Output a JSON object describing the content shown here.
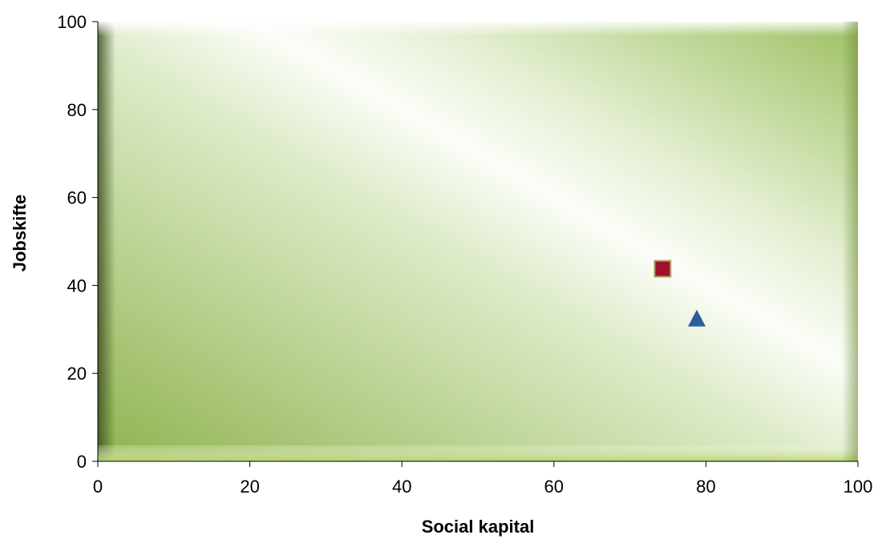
{
  "chart_data": {
    "type": "scatter",
    "title": "",
    "xlabel": "Social kapital",
    "ylabel": "Jobskifte",
    "xlim": [
      0,
      100
    ],
    "ylim": [
      0,
      100
    ],
    "x_ticks": [
      "0",
      "20",
      "40",
      "60",
      "80",
      "100"
    ],
    "y_ticks": [
      "0",
      "20",
      "40",
      "60",
      "80",
      "100"
    ],
    "grid": false,
    "legend": "none",
    "series": [
      {
        "marker": "square",
        "color": "#a0102a",
        "points": [
          {
            "x": 74.3,
            "y": 43.8
          }
        ]
      },
      {
        "marker": "triangle",
        "color": "#2f5d9c",
        "points": [
          {
            "x": 78.8,
            "y": 32.5
          }
        ]
      }
    ]
  },
  "colors": {
    "plot_green": "#9bbf5c",
    "plot_highlight": "#ffffff",
    "axis": "#000000"
  }
}
